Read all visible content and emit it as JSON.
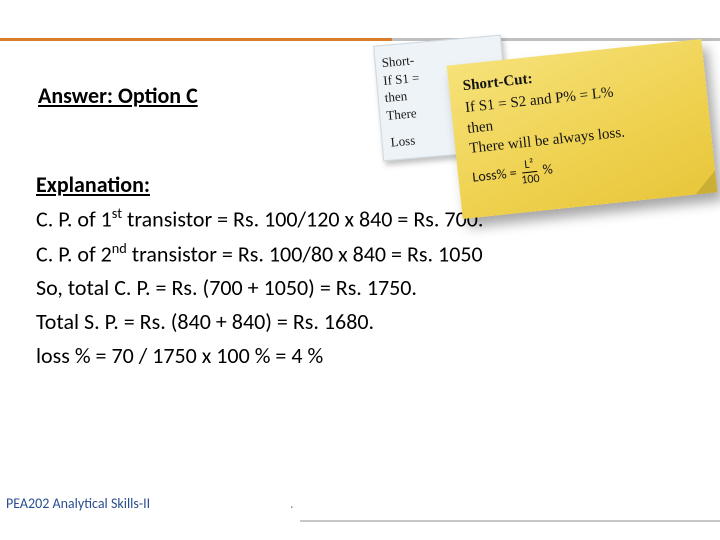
{
  "answer": {
    "label_answer": "Answer:",
    "label_option": " Option ",
    "letter": "C"
  },
  "explanation": {
    "header": "Explanation:",
    "lines": [
      {
        "pre": "C. P. of 1",
        "sup": "st",
        "post": " transistor = Rs. 100/120 x 840 = Rs. 700."
      },
      {
        "pre": "C. P. of 2",
        "sup": "nd",
        "post": " transistor = Rs. 100/80 x 840 = Rs. 1050"
      },
      {
        "text": "So, total C. P. = Rs. (700 + 1050) = Rs. 1750."
      },
      {
        "text": "Total S. P. = Rs. (840 + 840) = Rs. 1680."
      },
      {
        "text": "loss % = 70 / 1750 x 100 % = 4 %"
      }
    ]
  },
  "sticky_back": {
    "l1": "Short-",
    "l2": "If S1 =",
    "l3": "then",
    "l4": "There",
    "loss": "Loss"
  },
  "sticky_front": {
    "title": "Short-Cut:",
    "l1": "If S1 = S2 and P% = L%",
    "l2": "then",
    "l3": "There will be always loss.",
    "formula_lhs": "Loss% =",
    "formula_num": "L²",
    "formula_den": "100",
    "formula_rhs": "%"
  },
  "footer": {
    "course": "PEA202 Analytical Skills-II",
    "dot": "."
  },
  "colors": {
    "accent": "#d97d2b",
    "gray_rule": "#bfbfbf",
    "footer_text": "#2a4d8f",
    "sticky_yellow_top": "#f6e27a",
    "sticky_yellow_mid": "#efd14f",
    "sticky_yellow_bot": "#e7c63a",
    "sticky_back_bg": "#eef3f7"
  }
}
